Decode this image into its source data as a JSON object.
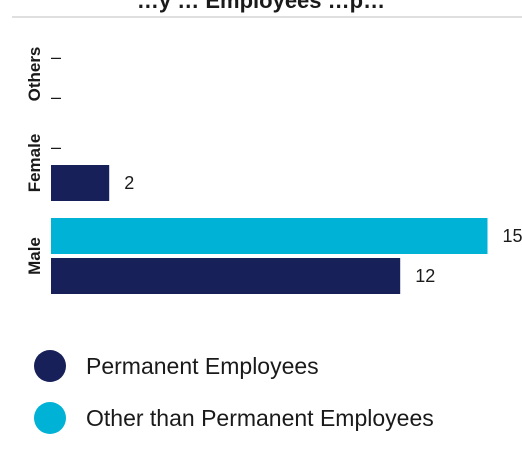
{
  "chart_data": {
    "type": "bar",
    "orientation": "horizontal",
    "title": "…y … Employees …p…",
    "categories": [
      "Others",
      "Female",
      "Male"
    ],
    "series": [
      {
        "name": "Permanent Employees",
        "color": "#172059",
        "values": [
          null,
          2,
          12
        ],
        "labels": [
          "–",
          "2",
          "12"
        ]
      },
      {
        "name": "Other than Permanent Employees",
        "color": "#00b2d6",
        "values": [
          null,
          null,
          15
        ],
        "labels": [
          "–",
          "–",
          "15"
        ]
      }
    ],
    "legend_position": "bottom",
    "grid": false
  }
}
